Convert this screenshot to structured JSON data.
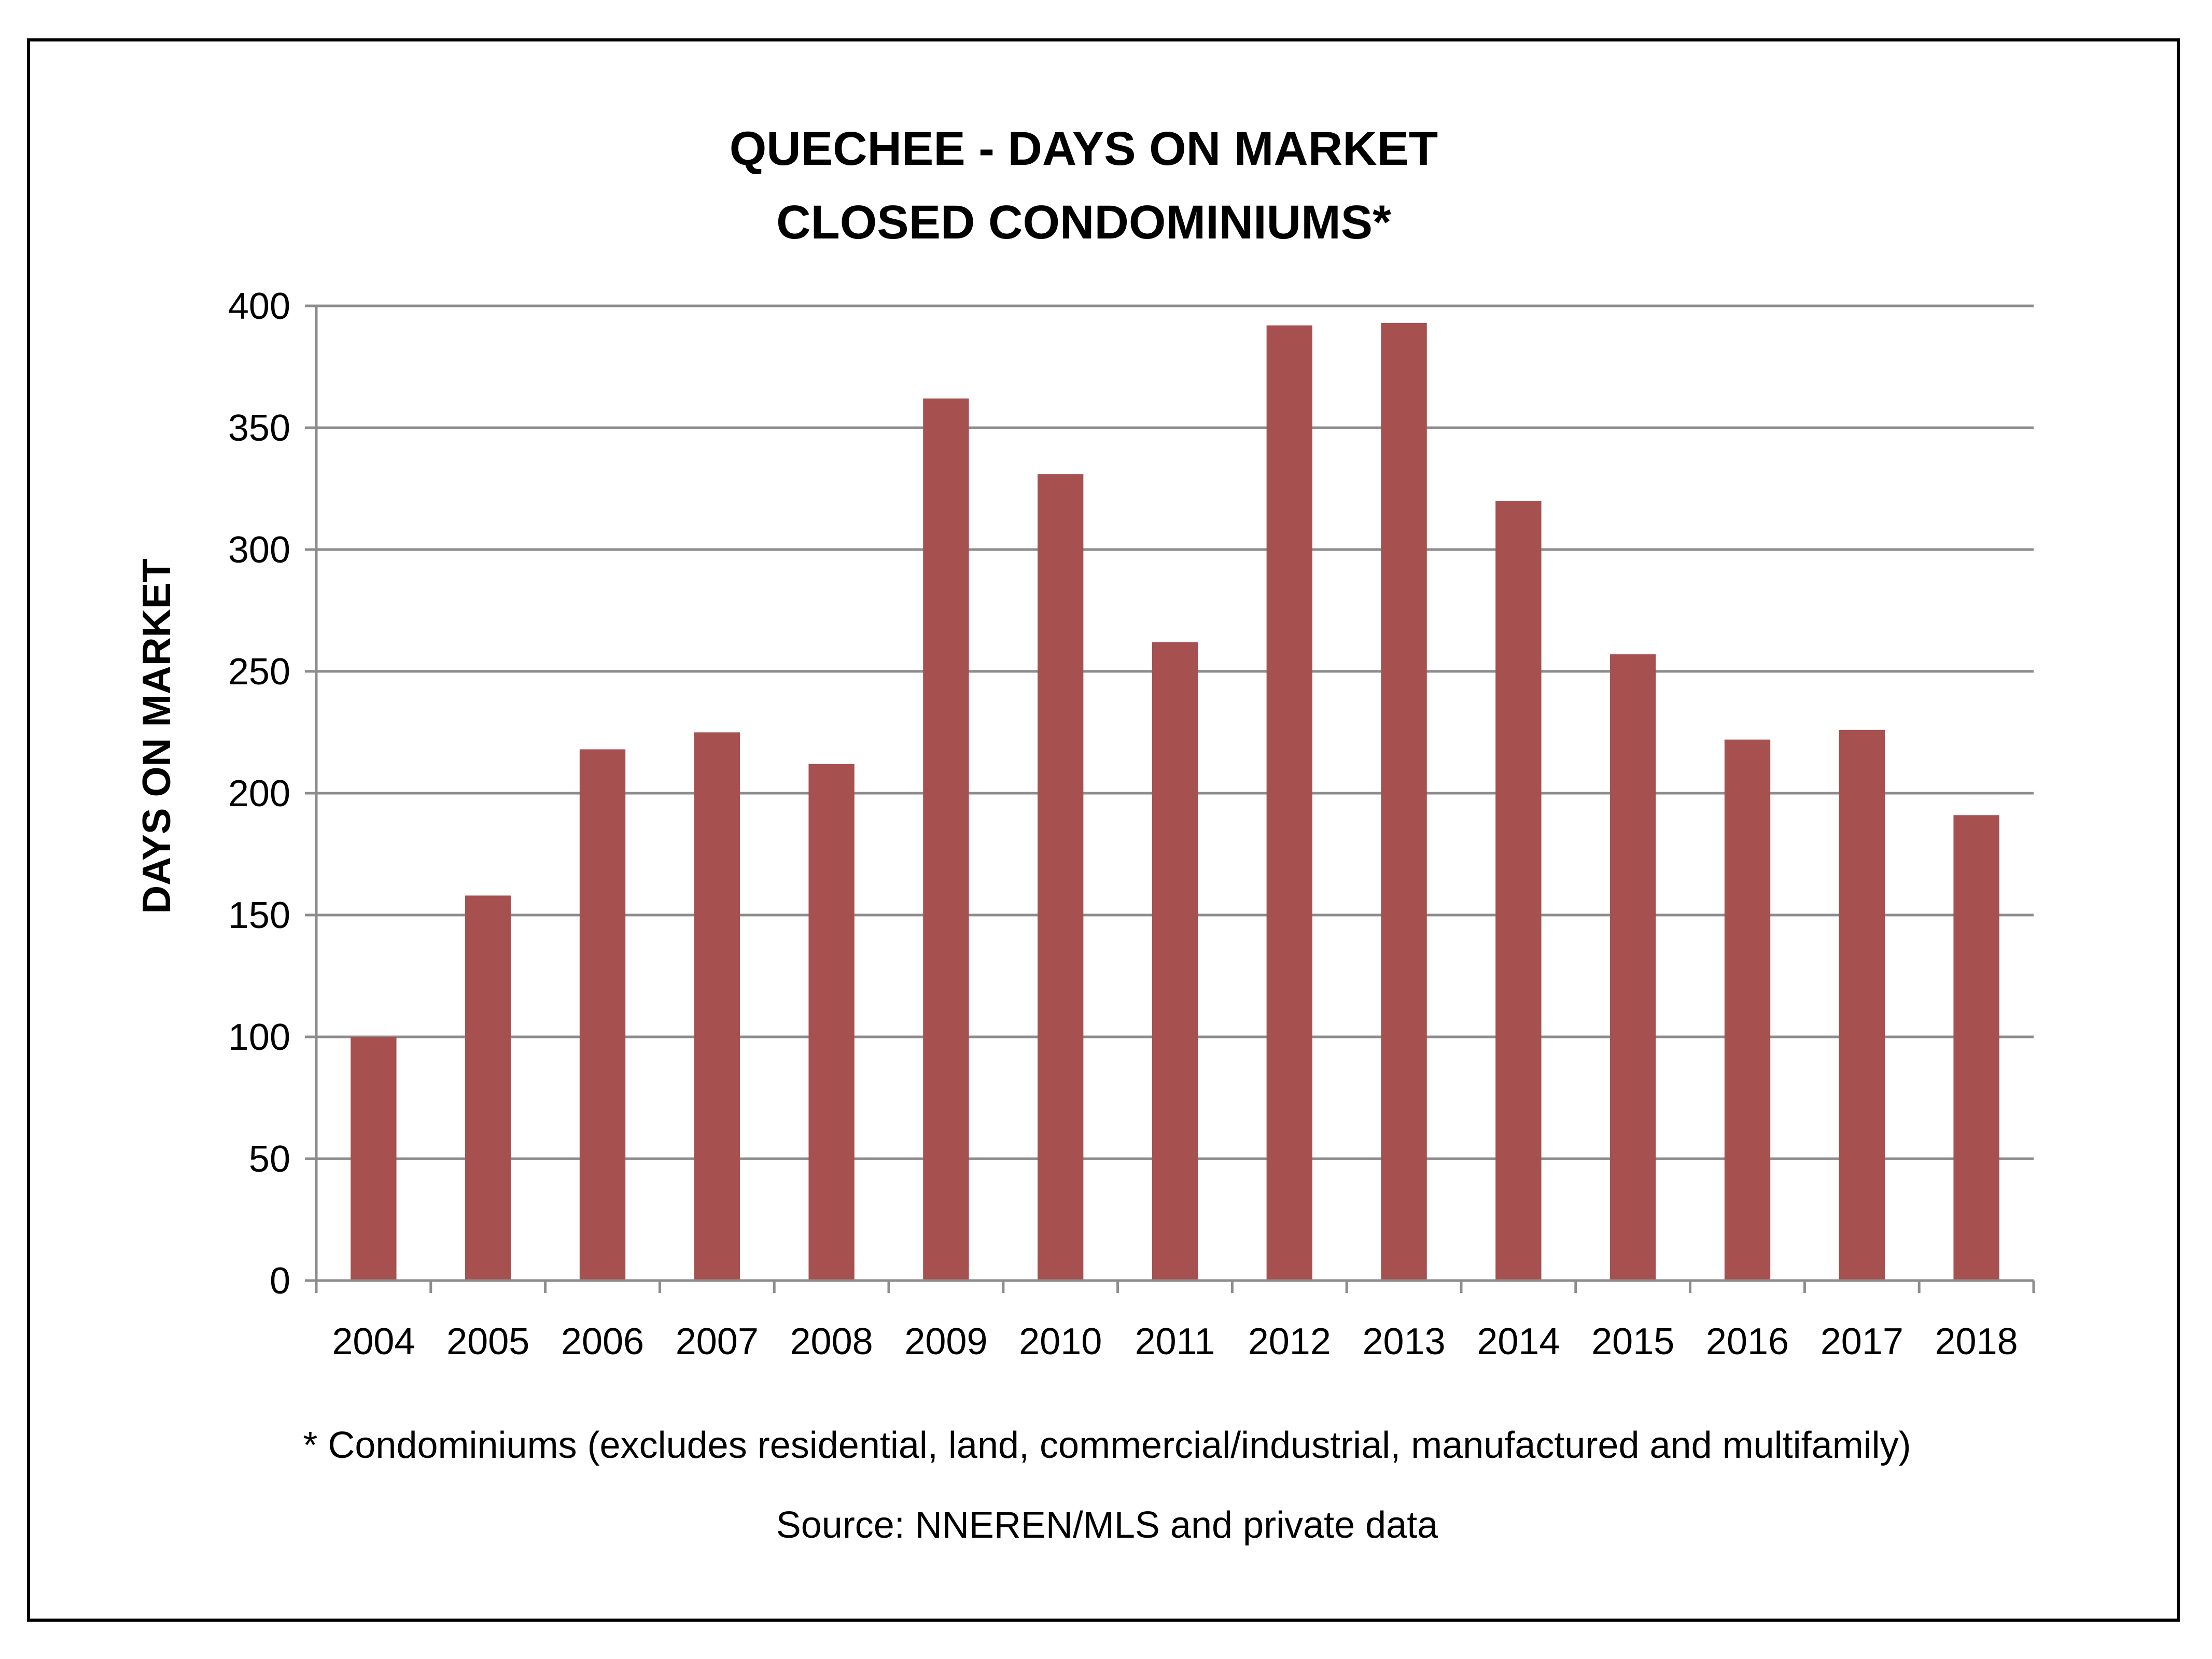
{
  "chart_data": {
    "type": "bar",
    "title": [
      "QUECHEE - DAYS ON MARKET",
      "CLOSED CONDOMINIUMS*"
    ],
    "ylabel": "DAYS ON MARKET",
    "xlabel": "",
    "categories": [
      "2004",
      "2005",
      "2006",
      "2007",
      "2008",
      "2009",
      "2010",
      "2011",
      "2012",
      "2013",
      "2014",
      "2015",
      "2016",
      "2017",
      "2018"
    ],
    "values": [
      100,
      158,
      218,
      225,
      212,
      362,
      331,
      262,
      392,
      393,
      320,
      257,
      222,
      226,
      191
    ],
    "ylim": [
      0,
      400
    ],
    "yticks": [
      0,
      50,
      100,
      150,
      200,
      250,
      300,
      350,
      400
    ],
    "grid": true,
    "legend": "none",
    "bar_color": "#A65050",
    "gridline_color": "#8C8C8C",
    "footnote": "* Condominiums (excludes residential, land, commercial/industrial, manufactured and multifamily)",
    "source": "Source: NNEREN/MLS and private data"
  }
}
